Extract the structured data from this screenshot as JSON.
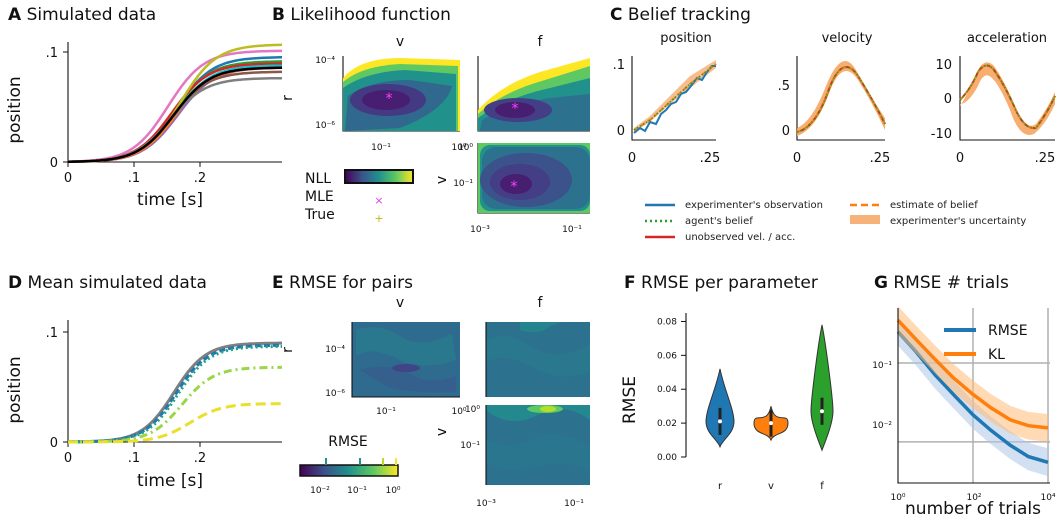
{
  "panels": {
    "A": {
      "letter": "A",
      "title": "Simulated data",
      "ylabel": "position",
      "xlabel": "time [s]",
      "yticks": [
        "0",
        ".1"
      ],
      "xticks": [
        "0",
        ".1",
        ".2"
      ]
    },
    "B": {
      "letter": "B",
      "title": "Likelihood function",
      "col_v": "v",
      "col_f": "f",
      "row_r": "r",
      "row_v": "v",
      "r_ticks": [
        "10⁻⁴",
        "10⁻⁶"
      ],
      "x_ticks_top": [
        "10⁻¹",
        "10⁰"
      ],
      "v_ticks": [
        "10⁻¹"
      ],
      "x_ticks_bot": [
        "10⁻³",
        "10⁻¹"
      ],
      "legend": {
        "nll": "NLL",
        "mle": "MLE",
        "true": "True",
        "mle_marker": "×",
        "true_marker": "+"
      }
    },
    "C": {
      "letter": "C",
      "title": "Belief tracking",
      "subplots": [
        {
          "title": "position",
          "yticks": [
            "0",
            ".1"
          ],
          "xticks": [
            "0",
            ".25"
          ]
        },
        {
          "title": "velocity",
          "yticks": [
            "0",
            ".5"
          ],
          "xticks": [
            "0",
            ".25"
          ]
        },
        {
          "title": "acceleration",
          "yticks": [
            "-10",
            "0",
            "10"
          ],
          "xticks": [
            "0",
            ".25"
          ]
        }
      ],
      "legend": [
        "experimenter's observation",
        "agent's belief",
        "unobserved vel. / acc.",
        "estimate of belief",
        "experimenter's uncertainty"
      ]
    },
    "D": {
      "letter": "D",
      "title": "Mean simulated data",
      "ylabel": "position",
      "xlabel": "time [s]",
      "yticks": [
        "0",
        ".1"
      ],
      "xticks": [
        "0",
        ".1",
        ".2"
      ]
    },
    "E": {
      "letter": "E",
      "title": "RMSE for pairs",
      "col_v": "v",
      "col_f": "f",
      "row_r": "r",
      "row_v": "v",
      "r_ticks": [
        "10⁻⁴",
        "10⁻⁶"
      ],
      "x_ticks_top": [
        "10⁻¹",
        "10⁰"
      ],
      "v_ticks": [
        "10⁻¹"
      ],
      "x_ticks_bot": [
        "10⁻³",
        "10⁻¹"
      ],
      "cbar_label": "RMSE",
      "cbar_ticks": [
        "10⁻²",
        "10⁻¹",
        "10⁰"
      ]
    },
    "F": {
      "letter": "F",
      "title": "RMSE per parameter",
      "ylabel": "RMSE"
    },
    "G": {
      "letter": "G",
      "title": "RMSE # trials",
      "xlabel": "number of trials",
      "yticks": [
        "10⁻¹",
        "10⁻²"
      ],
      "xticks": [
        "10⁰",
        "10²",
        "10⁴"
      ]
    }
  },
  "colors": {
    "blue": "#1f77b4",
    "orange": "#ff7f0e",
    "green": "#2ca02c",
    "red": "#d62728",
    "magenta": "#e040e0",
    "yellow": "#d4c21a"
  },
  "chart_data": [
    {
      "type": "violin",
      "panel": "F",
      "categories": [
        "r",
        "v",
        "f"
      ],
      "ylabel": "RMSE",
      "ylim": [
        0,
        0.085
      ],
      "yticks": [
        0,
        0.02,
        0.04,
        0.06,
        0.08
      ],
      "medians": [
        0.021,
        0.02,
        0.027
      ],
      "ranges": [
        [
          0.006,
          0.052
        ],
        [
          0.01,
          0.03
        ],
        [
          0.004,
          0.078
        ]
      ],
      "colors": [
        "#1f77b4",
        "#ff7f0e",
        "#2ca02c"
      ]
    },
    {
      "type": "line",
      "panel": "G",
      "xlabel": "number of trials",
      "xscale": "log",
      "yscale": "log",
      "xlim": [
        1,
        10000
      ],
      "ylim": [
        0.003,
        0.5
      ],
      "series": [
        {
          "name": "RMSE",
          "x": [
            1,
            3,
            10,
            30,
            100,
            300,
            1000,
            3000,
            10000
          ],
          "values": [
            0.25,
            0.14,
            0.07,
            0.04,
            0.022,
            0.014,
            0.009,
            0.0065,
            0.0055
          ]
        },
        {
          "name": "KL",
          "x": [
            1,
            3,
            10,
            30,
            100,
            300,
            1000,
            3000,
            10000
          ],
          "values": [
            0.35,
            0.2,
            0.11,
            0.065,
            0.04,
            0.027,
            0.019,
            0.016,
            0.015
          ]
        }
      ]
    },
    {
      "type": "line",
      "panel": "D",
      "xlabel": "time [s]",
      "ylabel": "position",
      "xlim": [
        0,
        0.28
      ],
      "ylim": [
        0,
        0.1
      ],
      "series": [
        {
          "final": 0.09
        },
        {
          "final": 0.088
        },
        {
          "final": 0.087
        },
        {
          "final": 0.068
        },
        {
          "final": 0.035
        }
      ]
    },
    {
      "type": "line",
      "panel": "A",
      "xlabel": "time [s]",
      "ylabel": "position",
      "xlim": [
        0,
        0.28
      ],
      "ylim": [
        0,
        0.1
      ],
      "series": [
        {
          "final": 0.09
        }
      ]
    }
  ]
}
